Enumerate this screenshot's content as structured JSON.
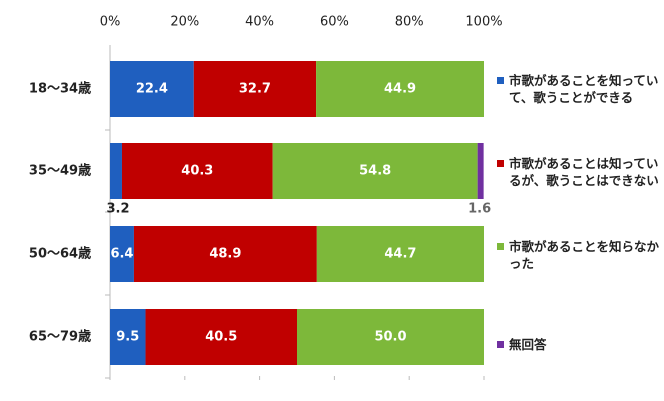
{
  "chart_data": {
    "type": "stacked-bar-horizontal",
    "categories": [
      "18〜34歳",
      "35〜49歳",
      "50〜64歳",
      "65〜79歳"
    ],
    "series": [
      {
        "name": "市歌があることを知っていて、歌うことができる",
        "color": "#1f5fbf",
        "values": [
          22.4,
          3.2,
          6.4,
          9.5
        ],
        "value_labels": [
          "22.4",
          "3.2",
          "6.4",
          "9.5"
        ]
      },
      {
        "name": "市歌があることは知っているが、歌うことはできない",
        "color": "#c00000",
        "values": [
          32.7,
          40.3,
          48.9,
          40.5
        ],
        "value_labels": [
          "32.7",
          "40.3",
          "48.9",
          "40.5"
        ]
      },
      {
        "name": "市歌があることを知らなかった",
        "color": "#7db83a",
        "values": [
          44.9,
          54.8,
          44.7,
          50.0
        ],
        "value_labels": [
          "44.9",
          "54.8",
          "44.7",
          "50.0"
        ]
      },
      {
        "name": "無回答",
        "color": "#7030a0",
        "values": [
          null,
          1.6,
          null,
          null
        ],
        "value_labels": [
          null,
          "1.6",
          null,
          null
        ]
      }
    ],
    "xlim": [
      0,
      100
    ],
    "xticks": [
      {
        "value": 0,
        "label": "0%"
      },
      {
        "value": 20,
        "label": "20%"
      },
      {
        "value": 40,
        "label": "40%"
      },
      {
        "value": 60,
        "label": "60%"
      },
      {
        "value": 80,
        "label": "80%"
      },
      {
        "value": 100,
        "label": "100%"
      }
    ],
    "legend": "right"
  }
}
